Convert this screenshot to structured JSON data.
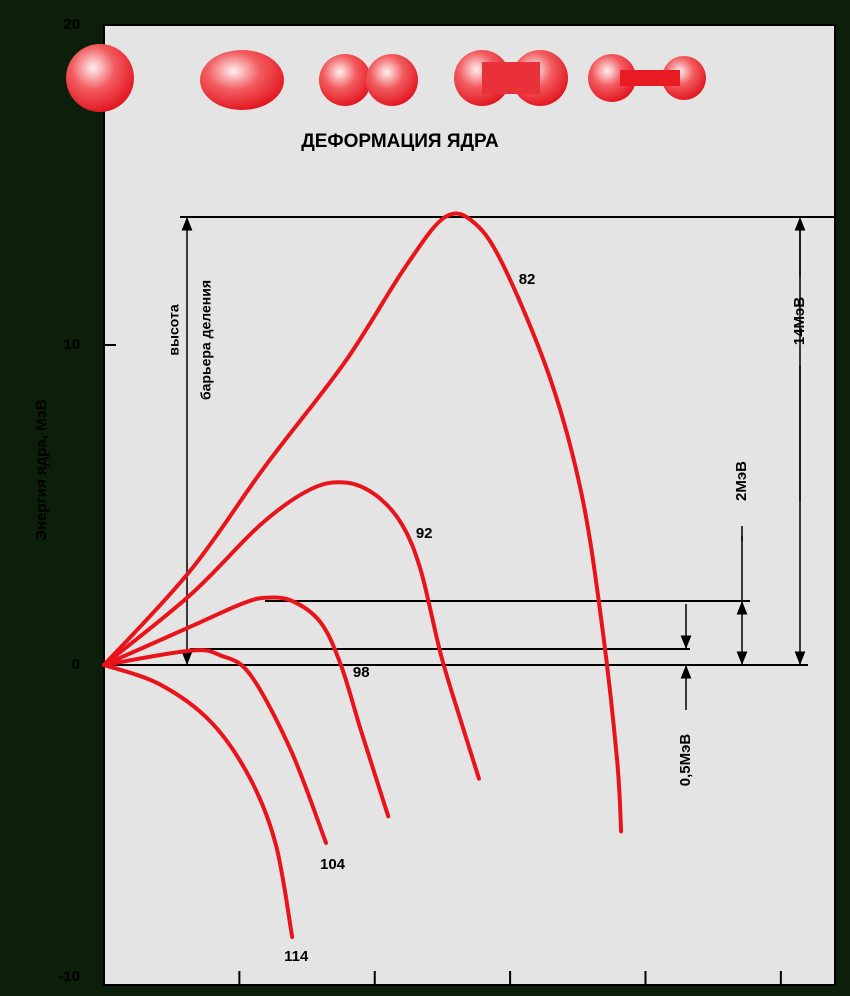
{
  "chart_data": {
    "type": "line",
    "title": "ДЕФОРМАЦИЯ ЯДРА",
    "y_label": "Энергия ядра, МэВ",
    "ylim": [
      -10,
      20
    ],
    "yticks": [
      -10,
      0,
      10,
      20
    ],
    "xlim": [
      0,
      5.4
    ],
    "xticks": [
      1,
      2,
      3,
      4,
      5
    ],
    "color": "#e8141a",
    "barrier_note": [
      "высота",
      "барьера деления"
    ],
    "levels": [
      {
        "value": 14,
        "label": "14МэВ"
      },
      {
        "value": 2,
        "label": "2МэВ"
      },
      {
        "value": 0.5,
        "label": "0,5МэВ"
      }
    ],
    "series": [
      {
        "name": "82",
        "x": [
          0,
          0.64,
          1.19,
          1.78,
          2.22,
          2.52,
          2.74,
          2.96,
          3.3,
          3.53,
          3.68,
          3.79,
          3.82
        ],
        "values": [
          0,
          2.96,
          6.21,
          9.47,
          12.4,
          14,
          13.8,
          12.4,
          8.9,
          5.3,
          1.2,
          -2.96,
          -5.2
        ]
      },
      {
        "name": "92",
        "x": [
          0,
          0.64,
          1.16,
          1.53,
          1.79,
          2.01,
          2.2,
          2.34,
          2.49,
          2.64,
          2.77
        ],
        "values": [
          0,
          2.2,
          4.4,
          5.5,
          5.7,
          5.3,
          4.4,
          2.96,
          0.3,
          -1.8,
          -3.55
        ]
      },
      {
        "name": "98",
        "x": [
          0,
          0.64,
          1.01,
          1.19,
          1.39,
          1.6,
          1.75,
          1.9,
          2.1
        ],
        "values": [
          0,
          1.2,
          1.9,
          2.1,
          2.0,
          1.33,
          0,
          -2.07,
          -4.73
        ]
      },
      {
        "name": "104",
        "x": [
          0,
          0.64,
          0.86,
          1.08,
          1.38,
          1.64
        ],
        "values": [
          0,
          0.45,
          0.3,
          -0.3,
          -2.66,
          -5.56
        ]
      },
      {
        "name": "114",
        "x": [
          0,
          0.41,
          0.79,
          1.08,
          1.27,
          1.39
        ],
        "values": [
          0,
          -0.6,
          -1.78,
          -3.55,
          -5.62,
          -8.5
        ]
      }
    ]
  }
}
